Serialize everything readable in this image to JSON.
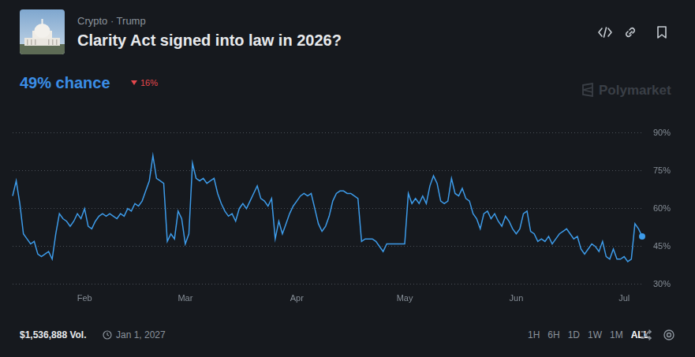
{
  "header": {
    "category": "Crypto · Trump",
    "title": "Clarity Act signed into law in 2026?",
    "chance": "49% chance",
    "change": "16%",
    "watermark": "Polymarket"
  },
  "chart_data": {
    "type": "line",
    "color": "#3d9be9",
    "grid": true,
    "marker": "last",
    "categories": [
      null,
      null,
      null,
      null,
      null,
      null,
      null,
      null,
      null,
      null,
      null,
      null,
      null,
      null,
      null,
      null,
      null,
      null,
      null,
      null,
      "Feb",
      null,
      null,
      null,
      null,
      null,
      null,
      null,
      null,
      null,
      null,
      null,
      null,
      null,
      null,
      null,
      null,
      null,
      null,
      null,
      null,
      null,
      null,
      null,
      null,
      null,
      null,
      null,
      "Mar",
      null,
      null,
      null,
      null,
      null,
      null,
      null,
      null,
      null,
      null,
      null,
      null,
      null,
      null,
      null,
      null,
      null,
      null,
      null,
      null,
      null,
      null,
      null,
      null,
      null,
      null,
      null,
      null,
      null,
      null,
      "Apr",
      null,
      null,
      null,
      null,
      null,
      null,
      null,
      null,
      null,
      null,
      null,
      null,
      null,
      null,
      null,
      null,
      null,
      null,
      null,
      null,
      null,
      null,
      null,
      null,
      null,
      null,
      null,
      null,
      null,
      "May",
      null,
      null,
      null,
      null,
      null,
      null,
      null,
      null,
      null,
      null,
      null,
      null,
      null,
      null,
      null,
      null,
      null,
      null,
      null,
      null,
      null,
      null,
      null,
      null,
      null,
      null,
      null,
      null,
      null,
      null,
      "Jun",
      null,
      null,
      null,
      null,
      null,
      null,
      null,
      null,
      null,
      null,
      null,
      null,
      null,
      null,
      null,
      null,
      null,
      null,
      null,
      null,
      null,
      null,
      null,
      null,
      null,
      null,
      null,
      null,
      null,
      "Jul",
      null,
      null,
      null,
      null,
      null
    ],
    "values": [
      65,
      71,
      62,
      50,
      48,
      46,
      47,
      42,
      41,
      42,
      43,
      40,
      50,
      58,
      56,
      55,
      53,
      55,
      58,
      56,
      60,
      53,
      52,
      55,
      57,
      58,
      57,
      58,
      57,
      56,
      58,
      57,
      60,
      59,
      62,
      61,
      63,
      67,
      71,
      81,
      72,
      71,
      70,
      47,
      50,
      48,
      59,
      56,
      46,
      50,
      78,
      72,
      71,
      72,
      70,
      71,
      72,
      66,
      62,
      59,
      57,
      58,
      55,
      60,
      62,
      60,
      63,
      66,
      69,
      64,
      63,
      61,
      64,
      48,
      55,
      50,
      54,
      58,
      61,
      63,
      65,
      66,
      65,
      66,
      60,
      54,
      51,
      53,
      57,
      63,
      66,
      67,
      67,
      66,
      66,
      65,
      64,
      47,
      48,
      48,
      48,
      47,
      45,
      43,
      46,
      46,
      46,
      46,
      46,
      46,
      66,
      62,
      64,
      62,
      65,
      62,
      69,
      73,
      70,
      63,
      62,
      63,
      72,
      66,
      65,
      68,
      64,
      63,
      58,
      56,
      52,
      58,
      59,
      56,
      58,
      55,
      53,
      57,
      55,
      52,
      50,
      52,
      58,
      59,
      51,
      50,
      47,
      48,
      47,
      49,
      46,
      48,
      50,
      51,
      52,
      50,
      48,
      49,
      44,
      42,
      44,
      46,
      45,
      43,
      47,
      41,
      40,
      44,
      40,
      40,
      41,
      39,
      40,
      54,
      52,
      49
    ],
    "ylim": [
      30,
      90
    ],
    "yticks": [
      {
        "value": 30,
        "label": "30%"
      },
      {
        "value": 45,
        "label": "45%"
      },
      {
        "value": 60,
        "label": "60%"
      },
      {
        "value": 75,
        "label": "75%"
      },
      {
        "value": 90,
        "label": "90%"
      }
    ]
  },
  "footer": {
    "volume": "$1,536,888 Vol.",
    "end_date": "Jan 1, 2027",
    "ranges": [
      "1H",
      "6H",
      "1D",
      "1W",
      "1M",
      "ALL"
    ],
    "selected": "ALL"
  }
}
